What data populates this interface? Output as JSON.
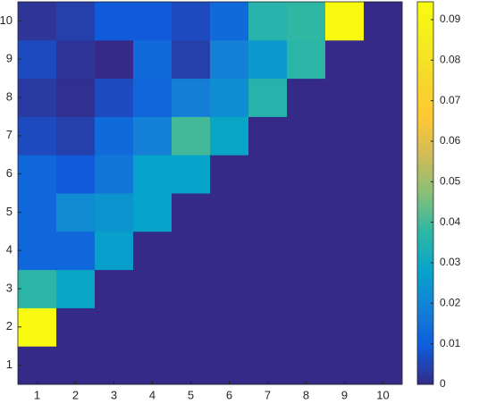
{
  "chart_data": {
    "type": "heatmap",
    "x": [
      1,
      2,
      3,
      4,
      5,
      6,
      7,
      8,
      9,
      10
    ],
    "y": [
      1,
      2,
      3,
      4,
      5,
      6,
      7,
      8,
      9,
      10
    ],
    "z": [
      [
        0,
        0,
        0,
        0,
        0,
        0,
        0,
        0,
        0,
        0
      ],
      [
        0.094,
        0,
        0,
        0,
        0,
        0,
        0,
        0,
        0,
        0
      ],
      [
        0.037,
        0.029,
        0,
        0,
        0,
        0,
        0,
        0,
        0,
        0
      ],
      [
        0.012,
        0.012,
        0.027,
        0,
        0,
        0,
        0,
        0,
        0,
        0
      ],
      [
        0.012,
        0.021,
        0.024,
        0.028,
        0,
        0,
        0,
        0,
        0,
        0
      ],
      [
        0.012,
        0.009,
        0.016,
        0.028,
        0.028,
        0,
        0,
        0,
        0,
        0
      ],
      [
        0.006,
        0.004,
        0.013,
        0.019,
        0.04,
        0.029,
        0,
        0,
        0,
        0
      ],
      [
        0.003,
        0.001,
        0.006,
        0.012,
        0.018,
        0.022,
        0.036,
        0,
        0,
        0
      ],
      [
        0.006,
        0.002,
        0,
        0.013,
        0.004,
        0.019,
        0.025,
        0.037,
        0,
        0
      ],
      [
        0.002,
        0.004,
        0.009,
        0.009,
        0.006,
        0.013,
        0.036,
        0.038,
        0.094,
        0
      ]
    ],
    "xticks": [
      1,
      2,
      3,
      4,
      5,
      6,
      7,
      8,
      9,
      10
    ],
    "yticks": [
      1,
      2,
      3,
      4,
      5,
      6,
      7,
      8,
      9,
      10
    ],
    "clim": [
      0,
      0.0944
    ],
    "cticks": [
      0,
      0.01,
      0.02,
      0.03,
      0.04,
      0.05,
      0.06,
      0.07,
      0.08,
      0.09
    ],
    "colormap": [
      "#352a87",
      "#0f5cdd",
      "#1481d6",
      "#06a4ca",
      "#2eb7a4",
      "#87bf77",
      "#d1bb59",
      "#fec832",
      "#f6d82a",
      "#f4ec1e",
      "#f9fb0e"
    ]
  }
}
